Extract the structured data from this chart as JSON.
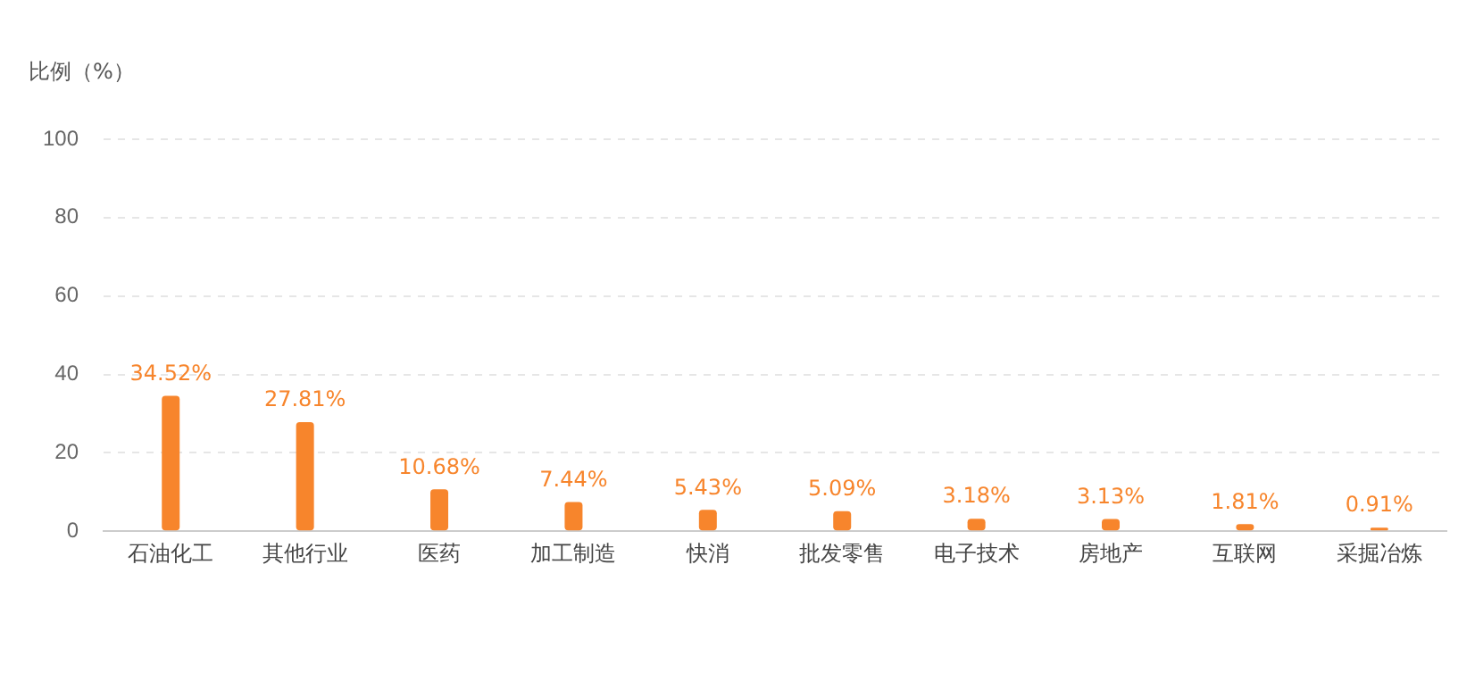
{
  "chart_data": {
    "type": "bar",
    "ylabel": "比例（%）",
    "categories": [
      "石油化工",
      "其他行业",
      "医药",
      "加工制造",
      "快消",
      "批发零售",
      "电子技术",
      "房地产",
      "互联网",
      "采掘冶炼"
    ],
    "values": [
      34.52,
      27.81,
      10.68,
      7.44,
      5.43,
      5.09,
      3.18,
      3.13,
      1.81,
      0.91
    ],
    "value_labels": [
      "34.52%",
      "27.81%",
      "10.68%",
      "7.44%",
      "5.43%",
      "5.09%",
      "3.18%",
      "3.13%",
      "1.81%",
      "0.91%"
    ],
    "color": "#f7852c",
    "ylim": [
      0,
      100
    ],
    "yticks": [
      0,
      20,
      40,
      60,
      80,
      100
    ],
    "grid": "y"
  }
}
